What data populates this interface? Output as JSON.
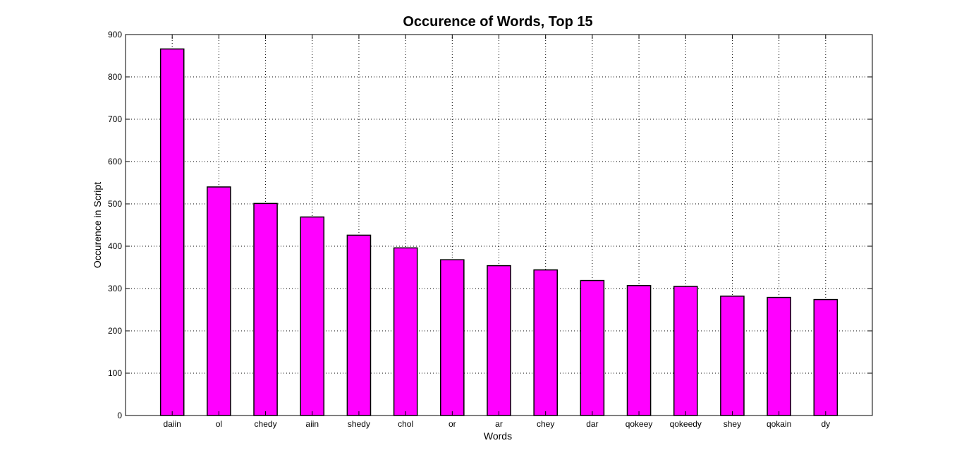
{
  "chart_data": {
    "type": "bar",
    "title": "Occurence of Words, Top 15",
    "xlabel": "Words",
    "ylabel": "Occurence in Script",
    "categories": [
      "daiin",
      "ol",
      "chedy",
      "aiin",
      "shedy",
      "chol",
      "or",
      "ar",
      "chey",
      "dar",
      "qokeey",
      "qokeedy",
      "shey",
      "qokain",
      "dy"
    ],
    "values": [
      866,
      540,
      501,
      469,
      426,
      396,
      368,
      354,
      344,
      319,
      307,
      305,
      282,
      279,
      274
    ],
    "ylim": [
      0,
      900
    ],
    "yticks": [
      0,
      100,
      200,
      300,
      400,
      500,
      600,
      700,
      800,
      900
    ],
    "grid": true,
    "bar_color": "#ff00ff"
  }
}
